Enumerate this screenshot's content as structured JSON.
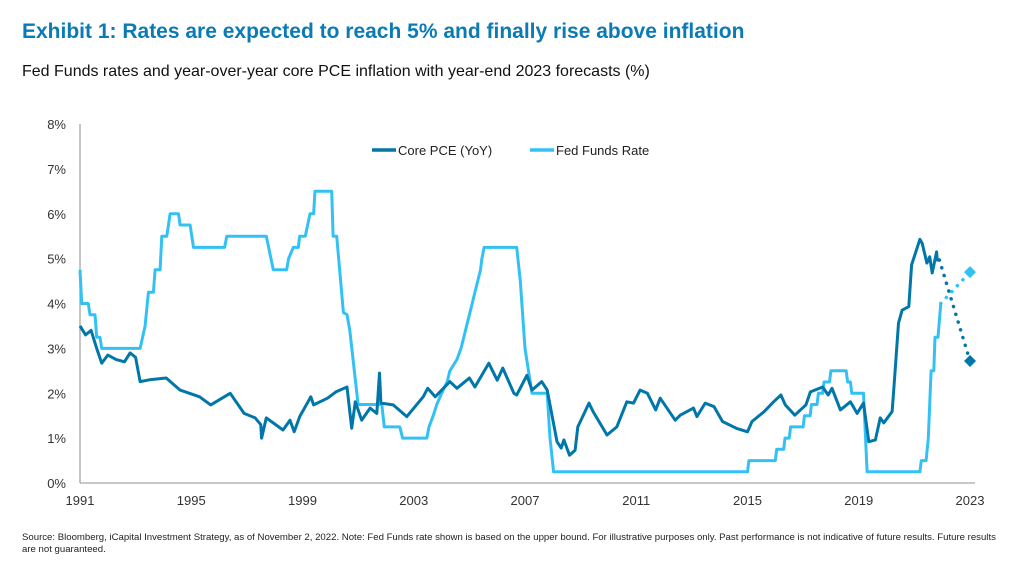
{
  "title": "Exhibit 1: Rates are expected to reach 5% and finally rise above inflation",
  "subtitle": "Fed Funds rates and year-over-year core PCE inflation with year-end 2023 forecasts (%)",
  "source": "Source: Bloomberg, iCapital Investment Strategy, as of November 2, 2022. Note: Fed Funds rate shown is based on the upper bound. For illustrative purposes only. Past performance is not indicative of future results. Future results are not guaranteed.",
  "chart_data": {
    "type": "line",
    "xlim": [
      1991,
      2023
    ],
    "ylim": [
      0,
      8
    ],
    "x_ticks": [
      1991,
      1995,
      1999,
      2003,
      2007,
      2011,
      2015,
      2019,
      2023
    ],
    "x_tick_labels": [
      "1991",
      "1995",
      "1999",
      "2003",
      "2007",
      "2011",
      "2015",
      "2019",
      "2023"
    ],
    "y_ticks": [
      0,
      1,
      2,
      3,
      4,
      5,
      6,
      7,
      8
    ],
    "y_tick_labels": [
      "0%",
      "1%",
      "2%",
      "3%",
      "4%",
      "5%",
      "6%",
      "7%",
      "8%"
    ],
    "grid": false,
    "legend_placement": "top-center",
    "series": [
      {
        "name": "Core PCE (YoY)",
        "color": "#0077a8",
        "values": [
          [
            1991.0,
            3.5
          ],
          [
            1991.2,
            3.3
          ],
          [
            1991.4,
            3.4
          ],
          [
            1991.6,
            3.0
          ],
          [
            1991.78,
            2.67
          ],
          [
            1992.0,
            2.85
          ],
          [
            1992.3,
            2.75
          ],
          [
            1992.6,
            2.7
          ],
          [
            1992.8,
            2.9
          ],
          [
            1993.0,
            2.8
          ],
          [
            1993.16,
            2.26
          ],
          [
            1993.5,
            2.3
          ],
          [
            1994.1,
            2.34
          ],
          [
            1994.6,
            2.07
          ],
          [
            1995.3,
            1.92
          ],
          [
            1995.7,
            1.74
          ],
          [
            1996.4,
            2.0
          ],
          [
            1996.9,
            1.55
          ],
          [
            1997.3,
            1.45
          ],
          [
            1997.5,
            1.3
          ],
          [
            1997.53,
            1.0
          ],
          [
            1997.7,
            1.45
          ],
          [
            1998.3,
            1.18
          ],
          [
            1998.55,
            1.4
          ],
          [
            1998.7,
            1.14
          ],
          [
            1998.9,
            1.48
          ],
          [
            1999.3,
            1.92
          ],
          [
            1999.4,
            1.74
          ],
          [
            1999.9,
            1.89
          ],
          [
            2000.2,
            2.03
          ],
          [
            2000.6,
            2.14
          ],
          [
            2000.77,
            1.22
          ],
          [
            2000.9,
            1.81
          ],
          [
            2001.13,
            1.4
          ],
          [
            2001.43,
            1.67
          ],
          [
            2001.67,
            1.55
          ],
          [
            2001.77,
            2.45
          ],
          [
            2001.82,
            1.78
          ],
          [
            2002.26,
            1.74
          ],
          [
            2002.75,
            1.48
          ],
          [
            2003.34,
            1.92
          ],
          [
            2003.5,
            2.11
          ],
          [
            2003.77,
            1.92
          ],
          [
            2004.3,
            2.26
          ],
          [
            2004.55,
            2.11
          ],
          [
            2005.0,
            2.34
          ],
          [
            2005.2,
            2.14
          ],
          [
            2005.7,
            2.67
          ],
          [
            2006.0,
            2.29
          ],
          [
            2006.2,
            2.56
          ],
          [
            2006.6,
            2.0
          ],
          [
            2006.7,
            1.96
          ],
          [
            2007.07,
            2.4
          ],
          [
            2007.25,
            2.07
          ],
          [
            2007.6,
            2.26
          ],
          [
            2007.8,
            2.07
          ],
          [
            2008.15,
            0.92
          ],
          [
            2008.3,
            0.78
          ],
          [
            2008.4,
            0.96
          ],
          [
            2008.6,
            0.62
          ],
          [
            2008.8,
            0.73
          ],
          [
            2008.9,
            1.25
          ],
          [
            2009.3,
            1.78
          ],
          [
            2009.45,
            1.59
          ],
          [
            2009.95,
            1.07
          ],
          [
            2010.3,
            1.25
          ],
          [
            2010.66,
            1.81
          ],
          [
            2010.9,
            1.78
          ],
          [
            2011.14,
            2.07
          ],
          [
            2011.4,
            2.0
          ],
          [
            2011.7,
            1.63
          ],
          [
            2011.86,
            1.89
          ],
          [
            2012.4,
            1.4
          ],
          [
            2012.58,
            1.51
          ],
          [
            2013.06,
            1.67
          ],
          [
            2013.18,
            1.48
          ],
          [
            2013.48,
            1.78
          ],
          [
            2013.8,
            1.7
          ],
          [
            2014.1,
            1.37
          ],
          [
            2014.6,
            1.22
          ],
          [
            2015.0,
            1.14
          ],
          [
            2015.16,
            1.37
          ],
          [
            2015.6,
            1.59
          ],
          [
            2015.94,
            1.81
          ],
          [
            2016.2,
            1.96
          ],
          [
            2016.36,
            1.74
          ],
          [
            2016.7,
            1.51
          ],
          [
            2017.1,
            1.74
          ],
          [
            2017.26,
            2.03
          ],
          [
            2017.7,
            2.14
          ],
          [
            2017.9,
            1.96
          ],
          [
            2018.04,
            2.11
          ],
          [
            2018.34,
            1.63
          ],
          [
            2018.7,
            1.81
          ],
          [
            2018.94,
            1.55
          ],
          [
            2019.17,
            1.78
          ],
          [
            2019.36,
            0.92
          ],
          [
            2019.6,
            0.96
          ],
          [
            2019.77,
            1.45
          ],
          [
            2019.9,
            1.34
          ],
          [
            2020.2,
            1.59
          ],
          [
            2020.25,
            2.0
          ],
          [
            2020.43,
            3.56
          ],
          [
            2020.56,
            3.85
          ],
          [
            2020.8,
            3.93
          ],
          [
            2020.9,
            4.86
          ],
          [
            2021.2,
            5.43
          ],
          [
            2021.28,
            5.34
          ],
          [
            2021.45,
            4.9
          ],
          [
            2021.55,
            5.04
          ],
          [
            2021.64,
            4.68
          ],
          [
            2021.8,
            5.15
          ],
          [
            2021.82,
            4.97
          ],
          [
            2021.9,
            4.97
          ]
        ],
        "forecast": [
          [
            2021.9,
            4.97
          ],
          [
            2023.0,
            2.72
          ]
        ]
      },
      {
        "name": "Fed Funds Rate",
        "color": "#33c1f5",
        "values": [
          [
            1991.0,
            4.75
          ],
          [
            1991.06,
            4.0
          ],
          [
            1991.3,
            4.0
          ],
          [
            1991.36,
            3.75
          ],
          [
            1991.54,
            3.75
          ],
          [
            1991.6,
            3.25
          ],
          [
            1991.72,
            3.25
          ],
          [
            1991.78,
            3.0
          ],
          [
            1993.16,
            3.0
          ],
          [
            1993.34,
            3.5
          ],
          [
            1993.46,
            4.25
          ],
          [
            1993.64,
            4.25
          ],
          [
            1993.7,
            4.75
          ],
          [
            1993.88,
            4.75
          ],
          [
            1993.94,
            5.5
          ],
          [
            1994.12,
            5.5
          ],
          [
            1994.24,
            6.0
          ],
          [
            1994.54,
            6.0
          ],
          [
            1994.6,
            5.75
          ],
          [
            1994.96,
            5.75
          ],
          [
            1995.08,
            5.25
          ],
          [
            1996.2,
            5.25
          ],
          [
            1996.28,
            5.5
          ],
          [
            1997.7,
            5.5
          ],
          [
            1997.95,
            4.75
          ],
          [
            1998.43,
            4.75
          ],
          [
            1998.5,
            5.0
          ],
          [
            1998.67,
            5.25
          ],
          [
            1998.85,
            5.25
          ],
          [
            1998.9,
            5.5
          ],
          [
            1999.1,
            5.5
          ],
          [
            1999.27,
            6.0
          ],
          [
            1999.4,
            6.0
          ],
          [
            1999.45,
            6.5
          ],
          [
            2000.05,
            6.5
          ],
          [
            2000.1,
            5.5
          ],
          [
            2000.23,
            5.5
          ],
          [
            2000.47,
            3.8
          ],
          [
            2000.6,
            3.75
          ],
          [
            2000.7,
            3.4
          ],
          [
            2001.0,
            1.75
          ],
          [
            2001.85,
            1.75
          ],
          [
            2001.94,
            1.25
          ],
          [
            2002.5,
            1.25
          ],
          [
            2002.6,
            1.0
          ],
          [
            2003.47,
            1.0
          ],
          [
            2003.55,
            1.25
          ],
          [
            2003.7,
            1.5
          ],
          [
            2003.83,
            1.75
          ],
          [
            2004.0,
            2.0
          ],
          [
            2004.2,
            2.25
          ],
          [
            2004.3,
            2.5
          ],
          [
            2004.55,
            2.75
          ],
          [
            2004.7,
            3.0
          ],
          [
            2004.8,
            3.25
          ],
          [
            2004.9,
            3.5
          ],
          [
            2005.0,
            3.75
          ],
          [
            2005.1,
            4.0
          ],
          [
            2005.2,
            4.25
          ],
          [
            2005.3,
            4.5
          ],
          [
            2005.4,
            4.75
          ],
          [
            2005.45,
            5.0
          ],
          [
            2005.53,
            5.25
          ],
          [
            2006.7,
            5.25
          ],
          [
            2006.83,
            4.5
          ],
          [
            2007.0,
            3.0
          ],
          [
            2007.25,
            2.0
          ],
          [
            2007.8,
            2.0
          ],
          [
            2007.9,
            1.0
          ],
          [
            2008.03,
            0.25
          ],
          [
            2015.0,
            0.25
          ],
          [
            2015.05,
            0.5
          ],
          [
            2016.0,
            0.5
          ],
          [
            2016.05,
            0.75
          ],
          [
            2016.3,
            0.75
          ],
          [
            2016.35,
            1.0
          ],
          [
            2016.5,
            1.0
          ],
          [
            2016.55,
            1.25
          ],
          [
            2017.0,
            1.25
          ],
          [
            2017.05,
            1.5
          ],
          [
            2017.25,
            1.5
          ],
          [
            2017.3,
            1.75
          ],
          [
            2017.5,
            1.75
          ],
          [
            2017.55,
            2.0
          ],
          [
            2017.7,
            2.0
          ],
          [
            2017.75,
            2.25
          ],
          [
            2017.95,
            2.25
          ],
          [
            2018.0,
            2.5
          ],
          [
            2018.55,
            2.5
          ],
          [
            2018.6,
            2.25
          ],
          [
            2018.7,
            2.25
          ],
          [
            2018.75,
            2.0
          ],
          [
            2019.17,
            2.0
          ],
          [
            2019.3,
            0.25
          ],
          [
            2021.2,
            0.25
          ],
          [
            2021.25,
            0.5
          ],
          [
            2021.42,
            0.5
          ],
          [
            2021.5,
            1.0
          ],
          [
            2021.55,
            1.75
          ],
          [
            2021.6,
            2.5
          ],
          [
            2021.7,
            2.5
          ],
          [
            2021.74,
            3.25
          ],
          [
            2021.85,
            3.25
          ],
          [
            2021.95,
            4.0
          ]
        ],
        "forecast": [
          [
            2021.95,
            4.0
          ],
          [
            2023.0,
            4.7
          ]
        ]
      }
    ]
  }
}
